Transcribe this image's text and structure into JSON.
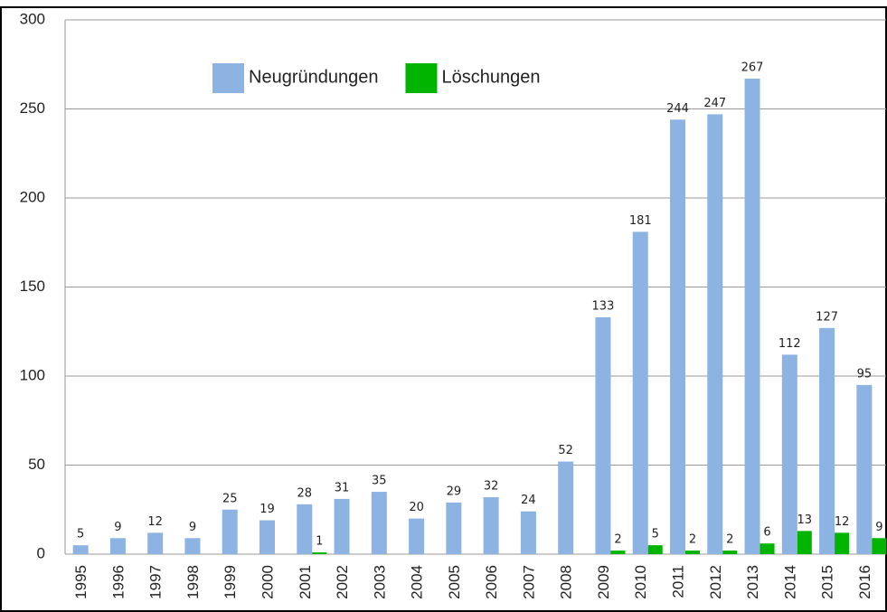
{
  "chart_data": {
    "type": "bar",
    "categories": [
      "1995",
      "1996",
      "1997",
      "1998",
      "1999",
      "2000",
      "2001",
      "2002",
      "2003",
      "2004",
      "2005",
      "2006",
      "2007",
      "2008",
      "2009",
      "2010",
      "2011",
      "2012",
      "2013",
      "2014",
      "2015",
      "2016"
    ],
    "series": [
      {
        "name": "Neugründungen",
        "color": "#8db3e2",
        "values": [
          5,
          9,
          12,
          9,
          25,
          19,
          28,
          31,
          35,
          20,
          29,
          32,
          24,
          52,
          133,
          181,
          244,
          247,
          267,
          112,
          127,
          95
        ]
      },
      {
        "name": "Löschungen",
        "color": "#00b400",
        "values": [
          null,
          null,
          null,
          null,
          null,
          null,
          1,
          null,
          null,
          null,
          null,
          null,
          null,
          null,
          2,
          5,
          2,
          2,
          6,
          13,
          12,
          9
        ]
      }
    ],
    "ylim": [
      0,
      300
    ],
    "yticks": [
      0,
      50,
      100,
      150,
      200,
      250,
      300
    ],
    "grid": true,
    "legend": "top"
  }
}
